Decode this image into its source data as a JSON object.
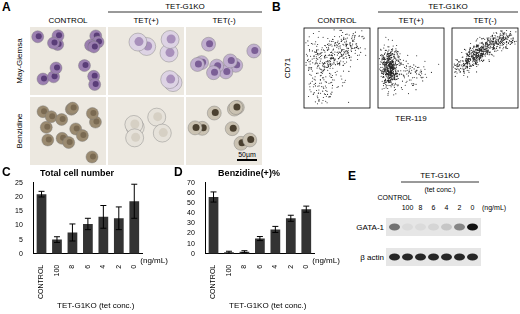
{
  "panels": {
    "A": {
      "label": "A",
      "group": "TET-G1KO",
      "columns": [
        "CONTROL",
        "TET(+)",
        "TET(-)"
      ],
      "rows": [
        "May-Giemsa",
        "Benzidine"
      ],
      "scale_bar": "50µm"
    },
    "B": {
      "label": "B",
      "group": "TET-G1KO",
      "columns": [
        "CONTROL",
        "TET(+)",
        "TET(-)"
      ],
      "y_label": "CD71",
      "x_label": "TER-119"
    },
    "E": {
      "label": "E",
      "group": "TET-G1KO",
      "subgroup": "(tet conc.)",
      "lanes": [
        "CONTROL",
        "100",
        "8",
        "6",
        "4",
        "2",
        "0"
      ],
      "unit": "(ng/mL)",
      "rows": [
        {
          "name": "GATA-1",
          "intensity": [
            0.55,
            0.05,
            0.05,
            0.08,
            0.15,
            0.45,
            1.0
          ]
        },
        {
          "name": "β actin",
          "intensity": [
            0.9,
            0.9,
            0.9,
            0.9,
            0.9,
            0.9,
            0.9
          ]
        }
      ]
    }
  },
  "chart_data": [
    {
      "panel": "C",
      "type": "bar",
      "title": "Total cell number",
      "categories": [
        "CONTROL",
        "100",
        "8",
        "6",
        "4",
        "2",
        "0"
      ],
      "values": [
        21,
        5,
        7.5,
        10.5,
        13,
        12.5,
        18.5
      ],
      "errors": [
        1,
        1,
        3,
        2,
        4,
        4,
        6
      ],
      "color": "#333333",
      "ylim": [
        0,
        25
      ],
      "yticks": [
        0,
        5,
        10,
        15,
        20,
        25
      ],
      "grid": false,
      "xlabel": "TET-G1KO (tet conc.)",
      "x_unit": "(ng/mL)"
    },
    {
      "panel": "D",
      "type": "bar",
      "title": "Benzidine(+)%",
      "categories": [
        "CONTROL",
        "100",
        "8",
        "6",
        "4",
        "2",
        "0"
      ],
      "values": [
        56,
        1.5,
        2,
        15,
        24,
        35,
        44
      ],
      "errors": [
        5,
        1,
        1,
        2,
        3,
        3,
        3
      ],
      "color": "#333333",
      "ylim": [
        0,
        70
      ],
      "yticks": [
        0,
        10,
        20,
        30,
        40,
        50,
        60,
        70
      ],
      "grid": false,
      "xlabel": "TET-G1KO (tet conc.)",
      "x_unit": "(ng/mL)"
    }
  ]
}
